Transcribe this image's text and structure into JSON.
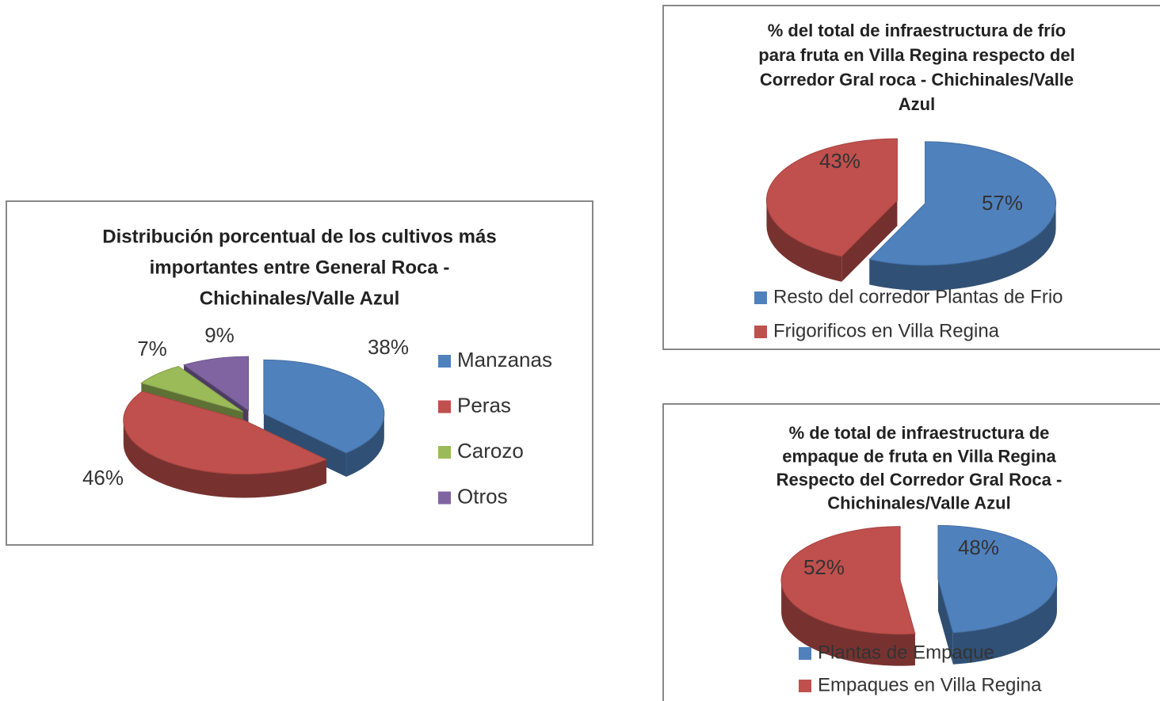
{
  "chart_data": [
    {
      "type": "pie",
      "title": [
        "Distribución porcentual de los cultivos más",
        "importantes entre General Roca -",
        "Chichinales/Valle Azul"
      ],
      "categories": [
        "Manzanas",
        "Peras",
        "Carozo",
        "Otros"
      ],
      "values": [
        38,
        46,
        7,
        9
      ],
      "value_labels": [
        "38%",
        "46%",
        "7%",
        "9%"
      ],
      "colors": [
        "#4f81bd",
        "#c0504d",
        "#9bbb59",
        "#8064a2"
      ]
    },
    {
      "type": "pie",
      "title": [
        "% del total de infraestructura de frío",
        "para fruta en Villa Regina respecto del",
        "Corredor Gral roca - Chichinales/Valle",
        "Azul"
      ],
      "categories": [
        "Resto del corredor Plantas de Frio",
        "Frigorificos en Villa Regina"
      ],
      "values": [
        57,
        43
      ],
      "value_labels": [
        "57%",
        "43%"
      ],
      "colors": [
        "#4f81bd",
        "#c0504d"
      ]
    },
    {
      "type": "pie",
      "title": [
        "% de total de infraestructura de",
        "empaque de fruta en Villa Regina",
        "Respecto del Corredor Gral Roca -",
        "Chichinales/Valle Azul"
      ],
      "categories": [
        "Plantas de Empaque",
        "Empaques en Villa Regina"
      ],
      "values": [
        48,
        52
      ],
      "value_labels": [
        "48%",
        "52%"
      ],
      "colors": [
        "#4f81bd",
        "#c0504d"
      ]
    }
  ]
}
